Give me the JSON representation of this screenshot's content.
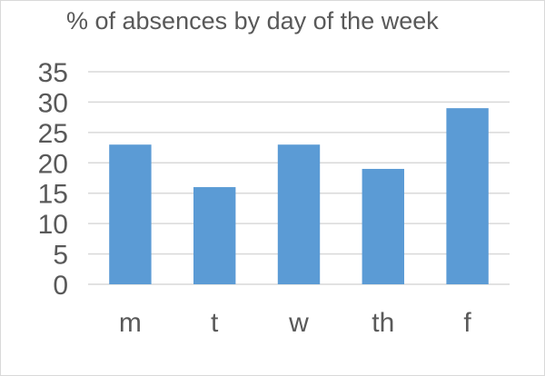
{
  "chart_data": {
    "type": "bar",
    "title": "% of absences by day of the week",
    "categories": [
      "m",
      "t",
      "w",
      "th",
      "f"
    ],
    "values": [
      23,
      16,
      23,
      19,
      29
    ],
    "ylim": [
      0,
      35
    ],
    "yticks": [
      0,
      5,
      10,
      15,
      20,
      25,
      30,
      35
    ],
    "grid": true,
    "bar_color": "#5b9bd5",
    "text_color": "#595959",
    "grid_color": "#d9d9d9"
  }
}
